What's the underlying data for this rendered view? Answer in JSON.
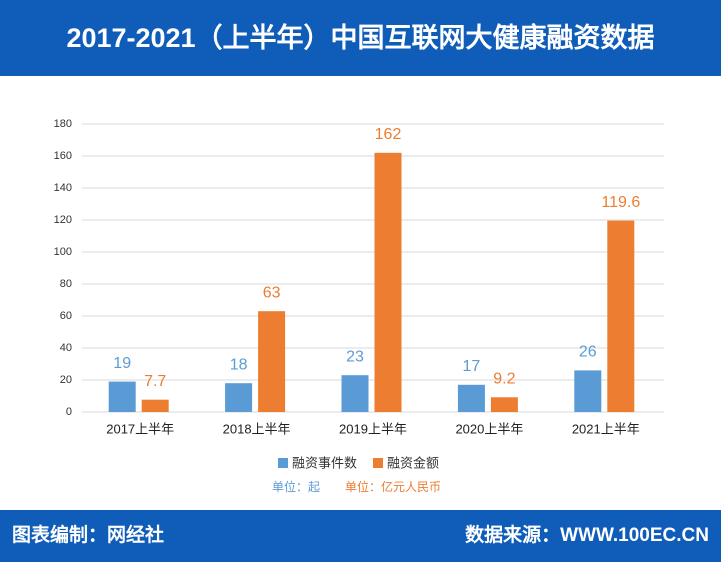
{
  "header": {
    "title": "2017-2021（上半年）中国互联网大健康融资数据"
  },
  "chart_data": {
    "type": "bar",
    "categories": [
      "2017上半年",
      "2018上半年",
      "2019上半年",
      "2020上半年",
      "2021上半年"
    ],
    "series": [
      {
        "name": "融资事件数",
        "color": "#5b9bd5",
        "values": [
          19,
          18,
          23,
          17,
          26
        ],
        "unit": "单位：起"
      },
      {
        "name": "融资金额",
        "color": "#ed7d31",
        "values": [
          7.7,
          63,
          162,
          9.2,
          119.6
        ],
        "unit": "单位：亿元人民币"
      }
    ],
    "ylim": [
      0,
      180
    ],
    "yticks": [
      0,
      20,
      40,
      60,
      80,
      100,
      120,
      140,
      160,
      180
    ],
    "grid": true
  },
  "footer": {
    "left": "图表编制：网经社",
    "right": "数据来源：WWW.100EC.CN"
  }
}
